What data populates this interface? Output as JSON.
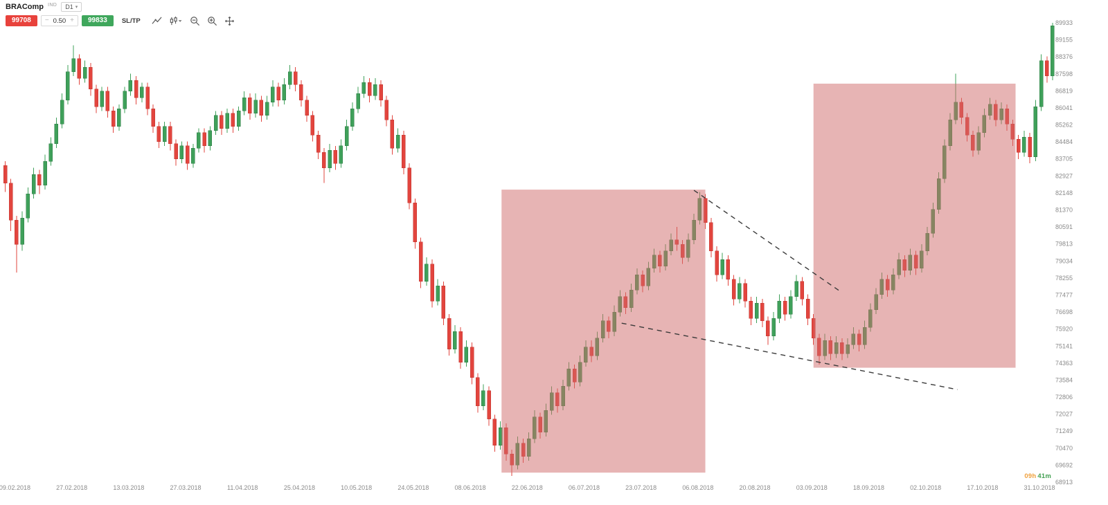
{
  "header": {
    "instrument": "BRAComp",
    "instrument_badge": "IND",
    "timeframe": "D1",
    "sell_price": "99708",
    "quantity": "0.50",
    "buy_price": "99833",
    "sltp_label": "SL/TP"
  },
  "footer": {
    "countdown_hours": "09h",
    "countdown_minutes": "41m"
  },
  "toolbar_icons": [
    "trendline-tool",
    "chart-type",
    "zoom-out",
    "zoom-in",
    "crosshair-move"
  ],
  "colors": {
    "bull": "#3FA05A",
    "bull_stroke": "#2F7D45",
    "bear": "#E2453E",
    "bear_stroke": "#C23732",
    "highlight_box": "#D06A6A",
    "trendline": "#3A3A3A",
    "axis_text": "#8A8A8A",
    "sell_button": "#E8423C",
    "buy_button": "#3FA75C",
    "countdown_hours": "#F0A03C",
    "countdown_minutes": "#43A053"
  },
  "chart_data": {
    "type": "candlestick",
    "title": "BRAComp daily candlestick chart with two highlighted falling-wedge pattern zones and dashed trendlines",
    "y_axis": {
      "min": 68913,
      "max": 89933,
      "labels": [
        "89933",
        "89155",
        "88376",
        "87598",
        "86819",
        "86041",
        "85262",
        "84484",
        "83705",
        "82927",
        "82148",
        "81370",
        "80591",
        "79813",
        "79034",
        "78255",
        "77477",
        "76698",
        "75920",
        "75141",
        "74363",
        "73584",
        "72806",
        "72027",
        "71249",
        "70470",
        "69692",
        "68913"
      ]
    },
    "x_axis": {
      "labels": [
        "09.02.2018",
        "27.02.2018",
        "13.03.2018",
        "27.03.2018",
        "11.04.2018",
        "25.04.2018",
        "10.05.2018",
        "24.05.2018",
        "08.06.2018",
        "22.06.2018",
        "06.07.2018",
        "23.07.2018",
        "06.08.2018",
        "20.08.2018",
        "03.09.2018",
        "18.09.2018",
        "02.10.2018",
        "17.10.2018",
        "31.10.2018"
      ],
      "tick_candle_indices": [
        2,
        12,
        22,
        32,
        42,
        52,
        62,
        72,
        82,
        92,
        102,
        112,
        122,
        132,
        142,
        152,
        162,
        172,
        182
      ]
    },
    "candles": [
      [
        83400,
        83600,
        82200,
        82600
      ],
      [
        82600,
        82800,
        80400,
        80900
      ],
      [
        80900,
        81100,
        78500,
        79800
      ],
      [
        79800,
        81300,
        79500,
        81000
      ],
      [
        81000,
        82400,
        80800,
        82100
      ],
      [
        82100,
        83300,
        81900,
        83000
      ],
      [
        83000,
        83200,
        82100,
        82500
      ],
      [
        82500,
        83900,
        82300,
        83600
      ],
      [
        83600,
        84700,
        83400,
        84400
      ],
      [
        84400,
        85600,
        84200,
        85300
      ],
      [
        85300,
        86700,
        85100,
        86400
      ],
      [
        86400,
        88000,
        86200,
        87700
      ],
      [
        87700,
        88900,
        87500,
        88300
      ],
      [
        88300,
        88500,
        87100,
        87400
      ],
      [
        87400,
        88200,
        87200,
        87900
      ],
      [
        87900,
        88100,
        86600,
        86900
      ],
      [
        86900,
        87100,
        85800,
        86100
      ],
      [
        86100,
        87000,
        85900,
        86800
      ],
      [
        86800,
        87000,
        85600,
        85900
      ],
      [
        85900,
        86100,
        84900,
        85200
      ],
      [
        85200,
        86200,
        85000,
        86000
      ],
      [
        86000,
        87000,
        85800,
        86800
      ],
      [
        86800,
        87600,
        86600,
        87300
      ],
      [
        87300,
        87500,
        86200,
        86500
      ],
      [
        86500,
        87200,
        86300,
        87000
      ],
      [
        87000,
        87200,
        85700,
        86000
      ],
      [
        86000,
        86200,
        84900,
        85200
      ],
      [
        85200,
        85400,
        84200,
        84500
      ],
      [
        84500,
        85400,
        84300,
        85200
      ],
      [
        85200,
        85400,
        84100,
        84400
      ],
      [
        84400,
        84600,
        83400,
        83700
      ],
      [
        83700,
        84500,
        83500,
        84300
      ],
      [
        84300,
        84500,
        83200,
        83500
      ],
      [
        83500,
        84400,
        83300,
        84200
      ],
      [
        84200,
        85100,
        84000,
        84900
      ],
      [
        84900,
        85100,
        84000,
        84300
      ],
      [
        84300,
        85200,
        84100,
        85000
      ],
      [
        85000,
        85900,
        84800,
        85700
      ],
      [
        85700,
        85900,
        84800,
        85100
      ],
      [
        85100,
        86000,
        84900,
        85800
      ],
      [
        85800,
        86000,
        84900,
        85200
      ],
      [
        85200,
        86100,
        85000,
        85900
      ],
      [
        85900,
        86800,
        85700,
        86500
      ],
      [
        86500,
        86700,
        85500,
        85800
      ],
      [
        85800,
        86700,
        85600,
        86400
      ],
      [
        86400,
        86600,
        85400,
        85700
      ],
      [
        85700,
        86600,
        85500,
        86300
      ],
      [
        86300,
        87300,
        86100,
        87000
      ],
      [
        87000,
        87200,
        86100,
        86400
      ],
      [
        86400,
        87400,
        86200,
        87100
      ],
      [
        87100,
        88000,
        86900,
        87700
      ],
      [
        87700,
        87900,
        86800,
        87100
      ],
      [
        87100,
        87300,
        86100,
        86400
      ],
      [
        86400,
        86600,
        85400,
        85700
      ],
      [
        85700,
        85900,
        84500,
        84800
      ],
      [
        84800,
        85000,
        83700,
        84000
      ],
      [
        84000,
        84200,
        82600,
        83300
      ],
      [
        83300,
        84400,
        83100,
        84100
      ],
      [
        84100,
        84300,
        83200,
        83500
      ],
      [
        83500,
        84600,
        83300,
        84300
      ],
      [
        84300,
        85500,
        84100,
        85200
      ],
      [
        85200,
        86300,
        85000,
        86000
      ],
      [
        86000,
        87000,
        85800,
        86700
      ],
      [
        86700,
        87500,
        86500,
        87200
      ],
      [
        87200,
        87400,
        86300,
        86600
      ],
      [
        86600,
        87400,
        86400,
        87100
      ],
      [
        87100,
        87300,
        86100,
        86400
      ],
      [
        86400,
        86600,
        85200,
        85500
      ],
      [
        85500,
        85700,
        83900,
        84200
      ],
      [
        84200,
        85100,
        84000,
        84800
      ],
      [
        84800,
        85000,
        83000,
        83300
      ],
      [
        83300,
        83500,
        81400,
        81700
      ],
      [
        81700,
        81900,
        79600,
        79900
      ],
      [
        79900,
        80100,
        77800,
        78100
      ],
      [
        78100,
        79200,
        77900,
        78900
      ],
      [
        78900,
        79100,
        76900,
        77200
      ],
      [
        77200,
        78200,
        77000,
        77900
      ],
      [
        77900,
        78100,
        76100,
        76400
      ],
      [
        76400,
        76600,
        74700,
        75000
      ],
      [
        75000,
        76100,
        74800,
        75800
      ],
      [
        75800,
        76000,
        74100,
        74400
      ],
      [
        74400,
        75400,
        74200,
        75100
      ],
      [
        75100,
        75300,
        73400,
        73700
      ],
      [
        73700,
        73900,
        72100,
        72400
      ],
      [
        72400,
        73400,
        72200,
        73100
      ],
      [
        73100,
        73300,
        71500,
        71800
      ],
      [
        71800,
        72000,
        70300,
        70600
      ],
      [
        70600,
        71700,
        70400,
        71400
      ],
      [
        71400,
        71600,
        69900,
        70200
      ],
      [
        70200,
        70400,
        69200,
        69700
      ],
      [
        69700,
        71000,
        69500,
        70700
      ],
      [
        70700,
        70900,
        69800,
        70100
      ],
      [
        70100,
        71200,
        69900,
        70900
      ],
      [
        70900,
        72200,
        70700,
        71900
      ],
      [
        71900,
        72100,
        70900,
        71200
      ],
      [
        71200,
        72500,
        71000,
        72200
      ],
      [
        72200,
        73300,
        72000,
        73000
      ],
      [
        73000,
        73200,
        72100,
        72400
      ],
      [
        72400,
        73600,
        72200,
        73300
      ],
      [
        73300,
        74400,
        73100,
        74100
      ],
      [
        74100,
        74300,
        73200,
        73500
      ],
      [
        73500,
        74700,
        73300,
        74400
      ],
      [
        74400,
        75400,
        74200,
        75100
      ],
      [
        75100,
        75400,
        74400,
        74700
      ],
      [
        74700,
        75800,
        74500,
        75500
      ],
      [
        75500,
        76600,
        75300,
        76300
      ],
      [
        76300,
        76500,
        75500,
        75800
      ],
      [
        75800,
        77000,
        75600,
        76700
      ],
      [
        76700,
        77700,
        76500,
        77400
      ],
      [
        77400,
        77600,
        76600,
        76900
      ],
      [
        76900,
        78000,
        76700,
        77700
      ],
      [
        77700,
        78700,
        77500,
        78400
      ],
      [
        78400,
        78600,
        77600,
        77900
      ],
      [
        77900,
        79000,
        77700,
        78700
      ],
      [
        78700,
        79600,
        78500,
        79300
      ],
      [
        79300,
        79500,
        78500,
        78800
      ],
      [
        78800,
        79800,
        78600,
        79500
      ],
      [
        79500,
        80300,
        79300,
        80000
      ],
      [
        80000,
        80600,
        79500,
        79800
      ],
      [
        79800,
        80000,
        78900,
        79200
      ],
      [
        79200,
        80300,
        79000,
        80000
      ],
      [
        80000,
        81200,
        79800,
        80900
      ],
      [
        80900,
        82200,
        80700,
        81900
      ],
      [
        81900,
        82100,
        80500,
        80800
      ],
      [
        80800,
        81000,
        79200,
        79500
      ],
      [
        79500,
        79700,
        78100,
        78400
      ],
      [
        78400,
        79400,
        78200,
        79100
      ],
      [
        79100,
        79300,
        77900,
        78200
      ],
      [
        78200,
        78400,
        77000,
        77300
      ],
      [
        77300,
        78300,
        77100,
        78000
      ],
      [
        78000,
        78200,
        76900,
        77200
      ],
      [
        77200,
        77400,
        76100,
        76400
      ],
      [
        76400,
        77400,
        76200,
        77100
      ],
      [
        77100,
        77300,
        76000,
        76300
      ],
      [
        76300,
        76500,
        75200,
        75600
      ],
      [
        75600,
        76700,
        75400,
        76400
      ],
      [
        76400,
        77500,
        76200,
        77200
      ],
      [
        77200,
        77400,
        76300,
        76600
      ],
      [
        76600,
        77700,
        76400,
        77400
      ],
      [
        77400,
        78400,
        77200,
        78100
      ],
      [
        78100,
        78300,
        77000,
        77300
      ],
      [
        77300,
        77500,
        76100,
        76400
      ],
      [
        76400,
        76600,
        75200,
        75500
      ],
      [
        75500,
        75700,
        74300,
        74700
      ],
      [
        74700,
        75700,
        74500,
        75400
      ],
      [
        75400,
        75600,
        74500,
        74800
      ],
      [
        74800,
        75600,
        74600,
        75300
      ],
      [
        75300,
        75500,
        74500,
        74800
      ],
      [
        74800,
        75500,
        74600,
        75200
      ],
      [
        75200,
        76000,
        75000,
        75700
      ],
      [
        75700,
        75900,
        74900,
        75200
      ],
      [
        75200,
        76300,
        75000,
        76000
      ],
      [
        76000,
        77100,
        75800,
        76800
      ],
      [
        76800,
        77800,
        76600,
        77500
      ],
      [
        77500,
        78500,
        77300,
        78200
      ],
      [
        78200,
        78400,
        77400,
        77700
      ],
      [
        77700,
        78700,
        77500,
        78400
      ],
      [
        78400,
        79400,
        78200,
        79100
      ],
      [
        79100,
        79300,
        78300,
        78600
      ],
      [
        78600,
        79600,
        78400,
        79300
      ],
      [
        79300,
        79500,
        78400,
        78700
      ],
      [
        78700,
        79800,
        78500,
        79500
      ],
      [
        79500,
        80600,
        79300,
        80300
      ],
      [
        80300,
        81700,
        80100,
        81400
      ],
      [
        81400,
        83100,
        81200,
        82800
      ],
      [
        82800,
        84600,
        82600,
        84300
      ],
      [
        84300,
        85800,
        84100,
        85500
      ],
      [
        85500,
        87600,
        85300,
        86300
      ],
      [
        86300,
        86500,
        85300,
        85600
      ],
      [
        85600,
        85800,
        84500,
        84800
      ],
      [
        84800,
        85000,
        83800,
        84100
      ],
      [
        84100,
        85200,
        83900,
        84900
      ],
      [
        84900,
        86000,
        84700,
        85700
      ],
      [
        85700,
        86500,
        85500,
        86200
      ],
      [
        86200,
        86400,
        85200,
        85500
      ],
      [
        85500,
        86300,
        85300,
        86000
      ],
      [
        86000,
        86200,
        85000,
        85300
      ],
      [
        85300,
        85500,
        84300,
        84600
      ],
      [
        84600,
        84800,
        83700,
        84000
      ],
      [
        84000,
        85000,
        83800,
        84700
      ],
      [
        84700,
        84900,
        83500,
        83800
      ],
      [
        83800,
        86400,
        83600,
        86100
      ],
      [
        86100,
        88500,
        85900,
        88200
      ],
      [
        88200,
        88400,
        87200,
        87500
      ],
      [
        87500,
        89933,
        87300,
        89800
      ]
    ],
    "annotations": {
      "boxes": [
        {
          "from_index": 87.5,
          "to_index": 123.3,
          "price_top": 82300,
          "price_bottom": 69350
        },
        {
          "from_index": 142.3,
          "to_index": 177.8,
          "price_top": 87150,
          "price_bottom": 74150
        }
      ],
      "trendlines": [
        {
          "from_index": 121.3,
          "from_price": 82270,
          "to_index": 146.8,
          "to_price": 77680
        },
        {
          "from_index": 108.6,
          "from_price": 76190,
          "to_index": 167.6,
          "to_price": 73150
        }
      ]
    }
  }
}
